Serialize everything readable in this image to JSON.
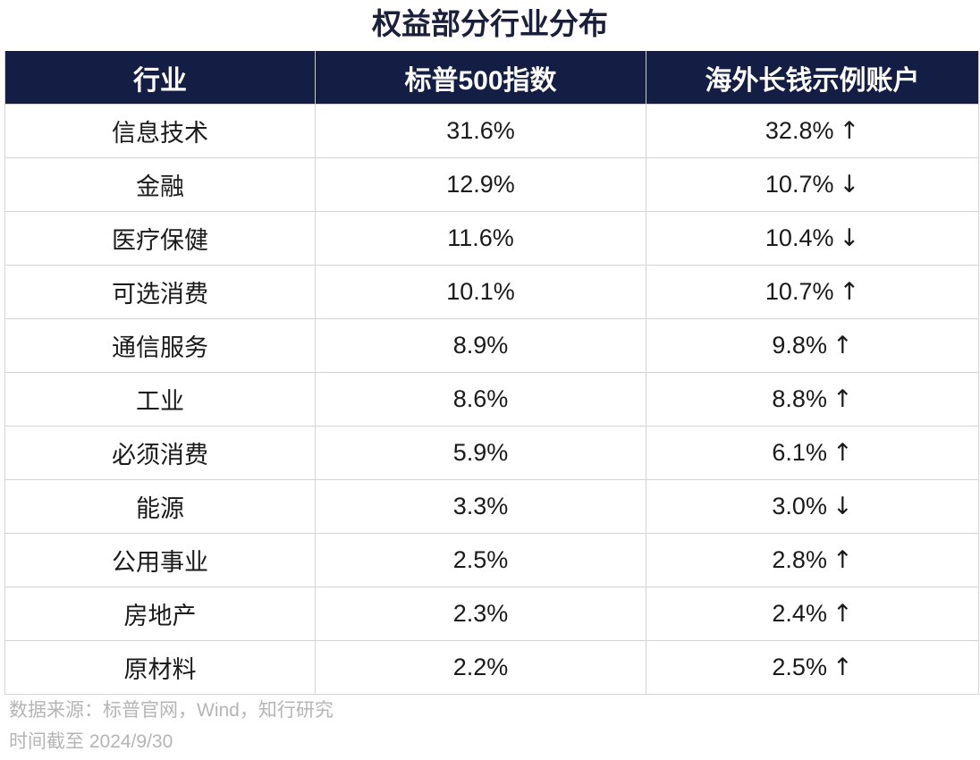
{
  "title": "权益部分行业分布",
  "header": {
    "col1": "行业",
    "col2": "标普500指数",
    "col3": "海外长钱示例账户"
  },
  "chart_data": {
    "type": "table",
    "title": "权益部分行业分布",
    "columns": [
      "行业",
      "标普500指数",
      "海外长钱示例账户"
    ],
    "rows": [
      {
        "sector": "信息技术",
        "sp500": "31.6%",
        "account": "32.8%",
        "direction": "up"
      },
      {
        "sector": "金融",
        "sp500": "12.9%",
        "account": "10.7%",
        "direction": "down"
      },
      {
        "sector": "医疗保健",
        "sp500": "11.6%",
        "account": "10.4%",
        "direction": "down"
      },
      {
        "sector": "可选消费",
        "sp500": "10.1%",
        "account": "10.7%",
        "direction": "up"
      },
      {
        "sector": "通信服务",
        "sp500": "8.9%",
        "account": "9.8%",
        "direction": "up"
      },
      {
        "sector": "工业",
        "sp500": "8.6%",
        "account": "8.8%",
        "direction": "up"
      },
      {
        "sector": "必须消费",
        "sp500": "5.9%",
        "account": "6.1%",
        "direction": "up"
      },
      {
        "sector": "能源",
        "sp500": "3.3%",
        "account": "3.0%",
        "direction": "down"
      },
      {
        "sector": "公用事业",
        "sp500": "2.5%",
        "account": "2.8%",
        "direction": "up"
      },
      {
        "sector": "房地产",
        "sp500": "2.3%",
        "account": "2.4%",
        "direction": "up"
      },
      {
        "sector": "原材料",
        "sp500": "2.2%",
        "account": "2.5%",
        "direction": "up"
      }
    ]
  },
  "arrows": {
    "up": "↑",
    "down": "↓"
  },
  "colors": {
    "header_bg": "#141d44",
    "header_text": "#ffffff",
    "title": "#1a1f3a",
    "footnote": "#b5b5b5"
  },
  "footer": {
    "source": "数据来源：标普官网，Wind，知行研究",
    "as_of": "时间截至 2024/9/30"
  }
}
